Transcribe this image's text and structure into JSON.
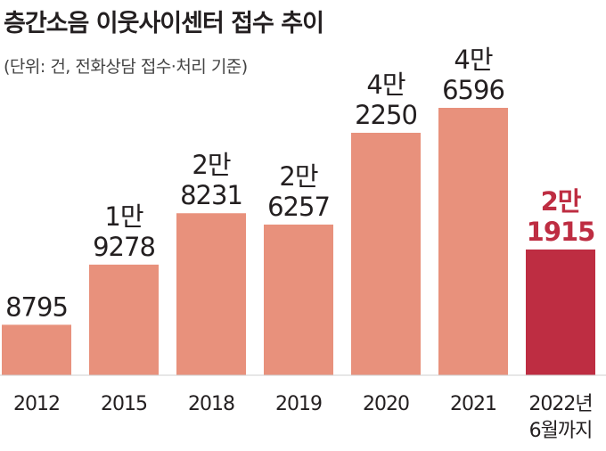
{
  "chart_data": {
    "type": "bar",
    "title": "층간소음 이웃사이센터 접수 추이",
    "subtitle": "(단위: 건, 전화상담 접수·처리 기준)",
    "xlabel": "",
    "ylabel": "",
    "categories": [
      "2012",
      "2015",
      "2018",
      "2019",
      "2020",
      "2021",
      "2022년|6월까지"
    ],
    "values": [
      8795,
      19278,
      28231,
      26257,
      42250,
      46596,
      21915
    ],
    "value_labels": [
      "8795",
      "1만|9278",
      "2만|8231",
      "2만|6257",
      "4만|2250",
      "4만|6596",
      "2만|1915"
    ],
    "highlight_index": 6,
    "ylim": [
      0,
      50000
    ],
    "grid": false,
    "legend": "none",
    "colors": {
      "bar": "#e8917c",
      "highlight_bar": "#be2d42",
      "label": "#231f20",
      "highlight_label": "#be2d42"
    }
  }
}
